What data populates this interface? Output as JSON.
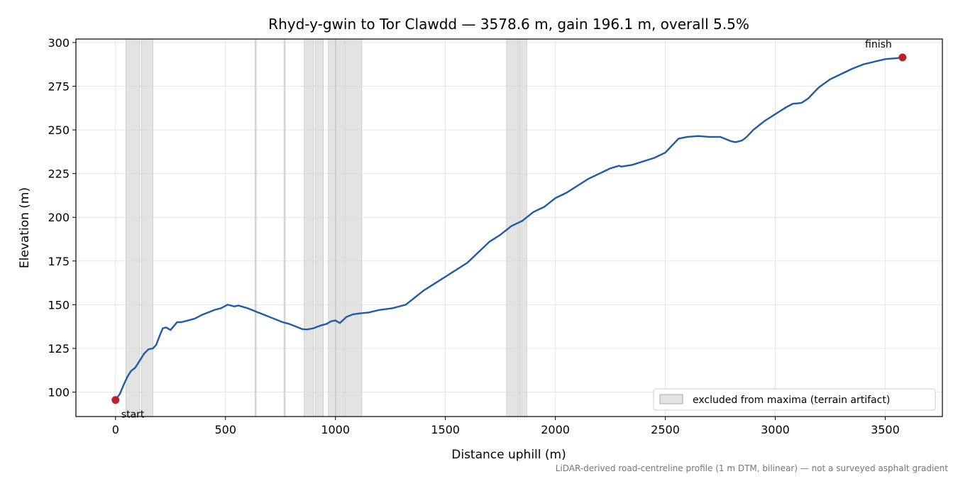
{
  "chart_data": {
    "type": "line",
    "title": "Rhyd-y-gwin to Tor Clawdd — 3578.6 m, gain 196.1 m, overall 5.5%",
    "xlabel": "Distance uphill (m)",
    "ylabel": "Elevation (m)",
    "xlim": [
      -180,
      3760
    ],
    "ylim": [
      86,
      302
    ],
    "x_ticks": [
      0,
      500,
      1000,
      1500,
      2000,
      2500,
      3000,
      3500
    ],
    "y_ticks": [
      100,
      125,
      150,
      175,
      200,
      225,
      250,
      275,
      300
    ],
    "grid": true,
    "legend_position": "lower-right",
    "legend_entries": [
      "excluded from maxima (terrain artifact)"
    ],
    "caption": "LiDAR-derived road-centreline profile (1 m DTM, bilinear) — not a surveyed asphalt gradient",
    "excluded_ranges": [
      [
        47,
        110
      ],
      [
        117,
        170
      ],
      [
        634,
        640
      ],
      [
        766,
        772
      ],
      [
        858,
        900
      ],
      [
        907,
        945
      ],
      [
        968,
        1000
      ],
      [
        1003,
        1040
      ],
      [
        1045,
        1120
      ],
      [
        1778,
        1833
      ],
      [
        1838,
        1870
      ]
    ],
    "series": [
      {
        "color": "#1f5aab",
        "x": [
          0,
          20,
          40,
          55,
          70,
          90,
          110,
          130,
          150,
          170,
          185,
          200,
          215,
          230,
          250,
          280,
          300,
          330,
          360,
          390,
          420,
          450,
          480,
          510,
          540,
          560,
          600,
          640,
          680,
          720,
          760,
          790,
          820,
          850,
          870,
          900,
          930,
          960,
          980,
          1000,
          1020,
          1050,
          1080,
          1110,
          1150,
          1200,
          1260,
          1320,
          1360,
          1400,
          1450,
          1500,
          1550,
          1600,
          1650,
          1700,
          1750,
          1800,
          1850,
          1900,
          1950,
          2000,
          2050,
          2100,
          2150,
          2200,
          2250,
          2290,
          2300,
          2350,
          2400,
          2450,
          2500,
          2530,
          2560,
          2600,
          2650,
          2700,
          2750,
          2800,
          2820,
          2850,
          2870,
          2900,
          2950,
          3000,
          3050,
          3080,
          3100,
          3120,
          3150,
          3180,
          3200,
          3250,
          3300,
          3350,
          3400,
          3450,
          3500,
          3550,
          3578.6
        ],
        "y": [
          95.5,
          99,
          105,
          109,
          112,
          114,
          118,
          122,
          124.5,
          125,
          127,
          132,
          136.5,
          137,
          135.5,
          140,
          140,
          141,
          142,
          144,
          145.5,
          147,
          148,
          150,
          149,
          149.5,
          148,
          146,
          144,
          142,
          140,
          139,
          137.5,
          136,
          135.8,
          136.5,
          138,
          139,
          140.5,
          141,
          139.5,
          143,
          144.5,
          145,
          145.5,
          147,
          148,
          150,
          154,
          158,
          162,
          166,
          170,
          174,
          180,
          186,
          190,
          195,
          198,
          203,
          206,
          211,
          214,
          218,
          222,
          225,
          228,
          229.5,
          229,
          230,
          232,
          234,
          237,
          241,
          245,
          246,
          246.5,
          246,
          246,
          243.5,
          243,
          244,
          246,
          250,
          255,
          259,
          263,
          265,
          265.2,
          265.5,
          268,
          272,
          274.5,
          279,
          282,
          285,
          287.5,
          289,
          290.5,
          291,
          291.5
        ]
      }
    ],
    "annotations": [
      {
        "label": "start",
        "x": 0,
        "y": 95.5
      },
      {
        "label": "finish",
        "x": 3578.6,
        "y": 291.5
      }
    ],
    "marker_color": "#c0202a",
    "shade_color": "#d9d9d9"
  }
}
